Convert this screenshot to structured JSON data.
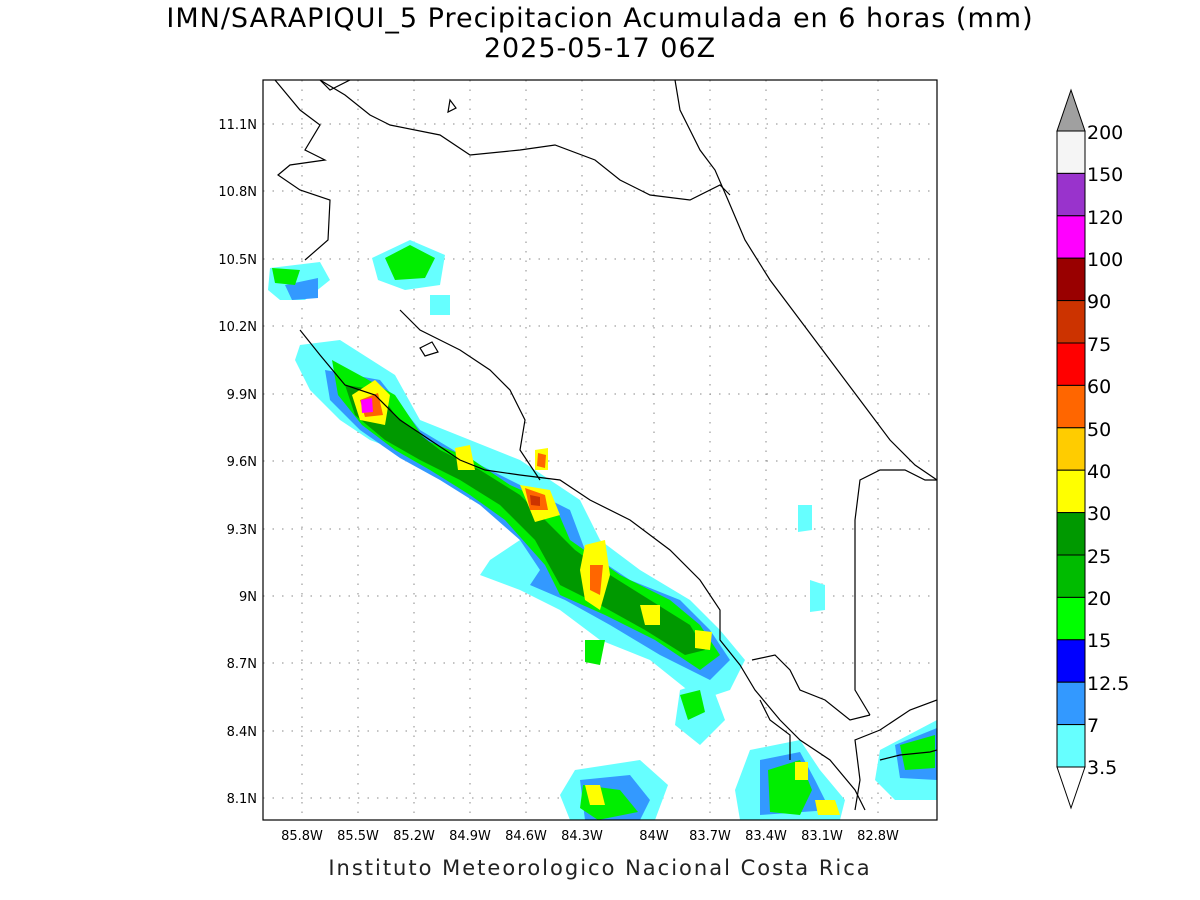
{
  "title": {
    "line1": "IMN/SARAPIQUI_5 Precipitacion Acumulada en 6 horas (mm)",
    "line2": "2025-05-17 06Z"
  },
  "footer": "Instituto Meteorologico Nacional Costa Rica",
  "map": {
    "lat_ticks": [
      "11.1N",
      "10.8N",
      "10.5N",
      "10.2N",
      "9.9N",
      "9.6N",
      "9.3N",
      "9N",
      "8.7N",
      "8.4N",
      "8.1N"
    ],
    "lon_ticks": [
      "85.8W",
      "85.5W",
      "85.2W",
      "84.9W",
      "84.6W",
      "84.3W",
      "84W",
      "83.7W",
      "83.4W",
      "83.1W",
      "82.8W"
    ]
  },
  "colorbar": {
    "labels": [
      "200",
      "150",
      "120",
      "100",
      "90",
      "75",
      "60",
      "50",
      "40",
      "30",
      "25",
      "20",
      "15",
      "12.5",
      "7",
      "3.5"
    ],
    "colors": [
      "#f5f5f5",
      "#9933cc",
      "#ff00ff",
      "#990000",
      "#cc3300",
      "#ff0000",
      "#ff6600",
      "#ffcc00",
      "#ffff00",
      "#009900",
      "#00bb00",
      "#00ff00",
      "#0000ff",
      "#3399ff",
      "#66ffff"
    ],
    "over_color": "#a0a0a0"
  }
}
